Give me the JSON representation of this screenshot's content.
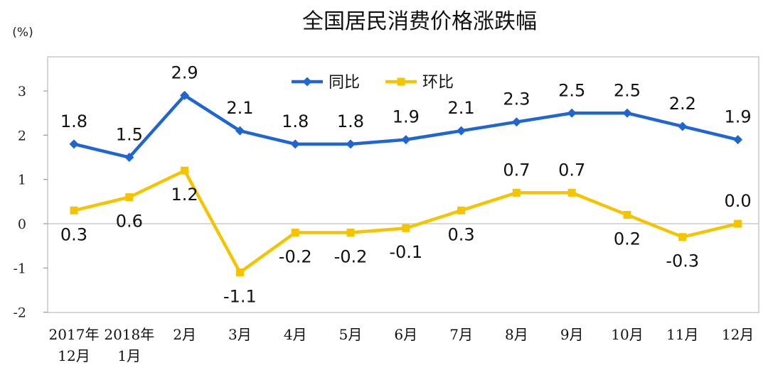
{
  "chart_data": {
    "type": "line",
    "title": "全国居民消费价格涨跌幅",
    "unit": "(%)",
    "categories": [
      [
        "2017年",
        "12月"
      ],
      [
        "2018年",
        "1月"
      ],
      [
        "2月"
      ],
      [
        "3月"
      ],
      [
        "4月"
      ],
      [
        "5月"
      ],
      [
        "6月"
      ],
      [
        "7月"
      ],
      [
        "8月"
      ],
      [
        "9月"
      ],
      [
        "10月"
      ],
      [
        "11月"
      ],
      [
        "12月"
      ]
    ],
    "ylim": [
      -2,
      3.5
    ],
    "yticks": [
      -2,
      -1,
      0,
      1,
      2,
      3
    ],
    "ytick_labels": [
      "-2",
      "-1",
      "0",
      "1",
      "2",
      "3"
    ],
    "grid": false,
    "legend_position": "top-center",
    "series": [
      {
        "name": "同比",
        "color": "#1f66d1",
        "marker": "diamond",
        "values": [
          1.8,
          1.5,
          2.9,
          2.1,
          1.8,
          1.8,
          1.9,
          2.1,
          2.3,
          2.5,
          2.5,
          2.2,
          1.9
        ],
        "labels": [
          "1.8",
          "1.5",
          "2.9",
          "2.1",
          "1.8",
          "1.8",
          "1.9",
          "2.1",
          "2.3",
          "2.5",
          "2.5",
          "2.2",
          "1.9"
        ],
        "label_side": [
          "above",
          "above",
          "above",
          "above",
          "above",
          "above",
          "above",
          "above",
          "above",
          "above",
          "above",
          "above",
          "above"
        ]
      },
      {
        "name": "环比",
        "color": "#f5c400",
        "marker": "square",
        "values": [
          0.3,
          0.6,
          1.2,
          -1.1,
          -0.2,
          -0.2,
          -0.1,
          0.3,
          0.7,
          0.7,
          0.2,
          -0.3,
          0.0
        ],
        "labels": [
          "0.3",
          "0.6",
          "1.2",
          "-1.1",
          "-0.2",
          "-0.2",
          "-0.1",
          "0.3",
          "0.7",
          "0.7",
          "0.2",
          "-0.3",
          "0.0"
        ],
        "label_side": [
          "below",
          "below",
          "below",
          "below",
          "below",
          "below",
          "below",
          "below",
          "above",
          "above",
          "below",
          "below",
          "above"
        ]
      }
    ]
  }
}
